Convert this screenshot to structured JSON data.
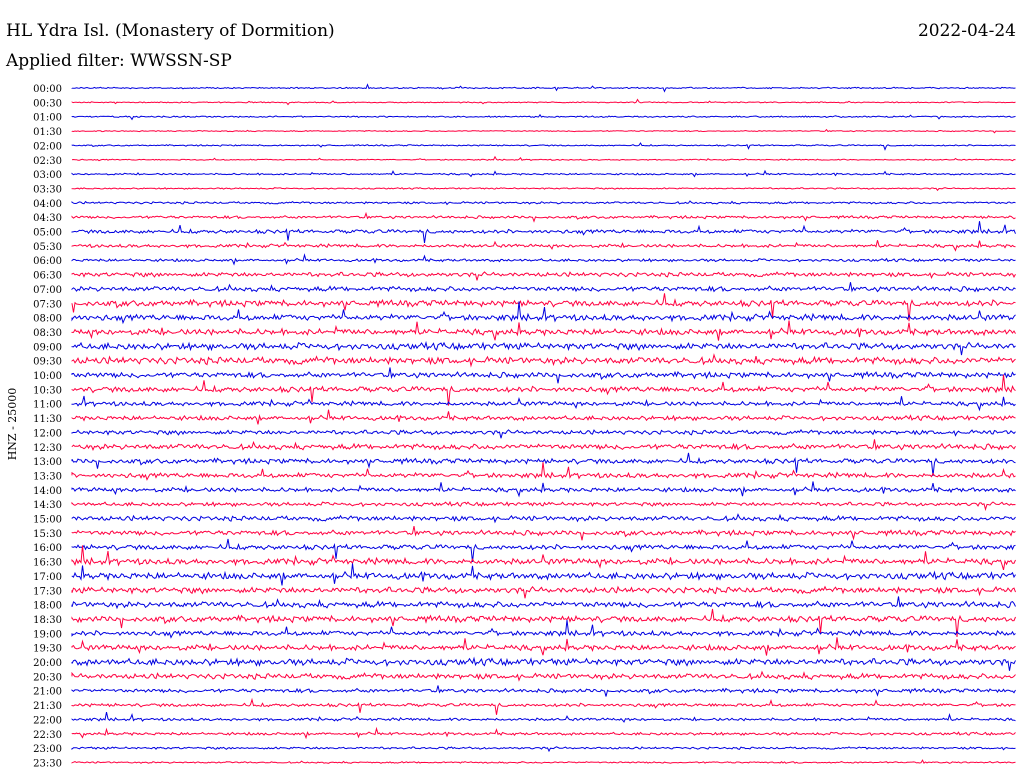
{
  "header": {
    "station": "HL Ydra Isl. (Monastery of Dormition)",
    "date": "2022-04-24",
    "filter": "Applied filter: WWSSN-SP"
  },
  "chart_data": {
    "type": "line",
    "title": "HL Ydra Isl. (Monastery of Dormition)",
    "subtitle": "Applied filter: WWSSN-SP",
    "ylabel": "HNZ - 25000",
    "row_labels": [
      "00:00",
      "00:30",
      "01:00",
      "01:30",
      "02:00",
      "02:30",
      "03:00",
      "03:30",
      "04:00",
      "04:30",
      "05:00",
      "05:30",
      "06:00",
      "06:30",
      "07:00",
      "07:30",
      "08:00",
      "08:30",
      "09:00",
      "09:30",
      "10:00",
      "10:30",
      "11:00",
      "11:30",
      "12:00",
      "12:30",
      "13:00",
      "13:30",
      "14:00",
      "14:30",
      "15:00",
      "15:30",
      "16:00",
      "16:30",
      "17:00",
      "17:30",
      "18:00",
      "18:30",
      "19:00",
      "19:30",
      "20:00",
      "20:30",
      "21:00",
      "21:30",
      "22:00",
      "22:30",
      "23:00",
      "23:30"
    ],
    "colors": [
      "#0000e0",
      "#ff0040"
    ],
    "noise_level": [
      0.5,
      0.4,
      0.5,
      0.4,
      0.5,
      0.4,
      0.6,
      0.5,
      0.8,
      1.0,
      1.4,
      1.2,
      1.0,
      1.6,
      1.8,
      2.2,
      2.2,
      2.2,
      2.4,
      2.6,
      2.0,
      2.0,
      1.6,
      1.6,
      1.6,
      2.0,
      1.8,
      1.8,
      1.6,
      1.4,
      1.8,
      1.8,
      1.8,
      2.2,
      2.4,
      2.2,
      2.2,
      2.2,
      1.8,
      2.0,
      2.4,
      2.0,
      1.4,
      1.2,
      1.0,
      1.0,
      0.8,
      0.6
    ]
  }
}
